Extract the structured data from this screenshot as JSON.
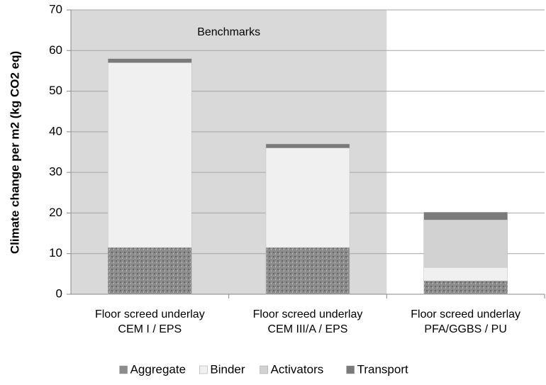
{
  "chart_data": {
    "type": "stacked_bar",
    "ylabel": "Climate change per m2 (kg CO2 eq)",
    "annotation": {
      "text": "Benchmarks",
      "span": [
        0,
        1
      ],
      "color": "#d9d9d9"
    },
    "categories": [
      [
        "Floor screed underlay",
        "CEM I / EPS"
      ],
      [
        "Floor screed underlay",
        "CEM III/A / EPS"
      ],
      [
        "Floor screed underlay",
        "PFA/GGBS / PU"
      ]
    ],
    "series": [
      {
        "name": "Aggregate",
        "color": "#8c8c8c",
        "values": [
          11.5,
          11.5,
          3.3
        ]
      },
      {
        "name": "Binder",
        "color": "#f0f0f0",
        "values": [
          45.5,
          24.5,
          3.3
        ]
      },
      {
        "name": "Activators",
        "color": "#d2d2d2",
        "values": [
          0,
          0,
          11.7
        ]
      },
      {
        "name": "Transport",
        "color": "#7a7a7a",
        "values": [
          1,
          1,
          1.9
        ]
      }
    ],
    "ylim": [
      0,
      70
    ],
    "yticks": [
      0,
      10,
      20,
      30,
      40,
      50,
      60,
      70
    ],
    "grid": true
  }
}
